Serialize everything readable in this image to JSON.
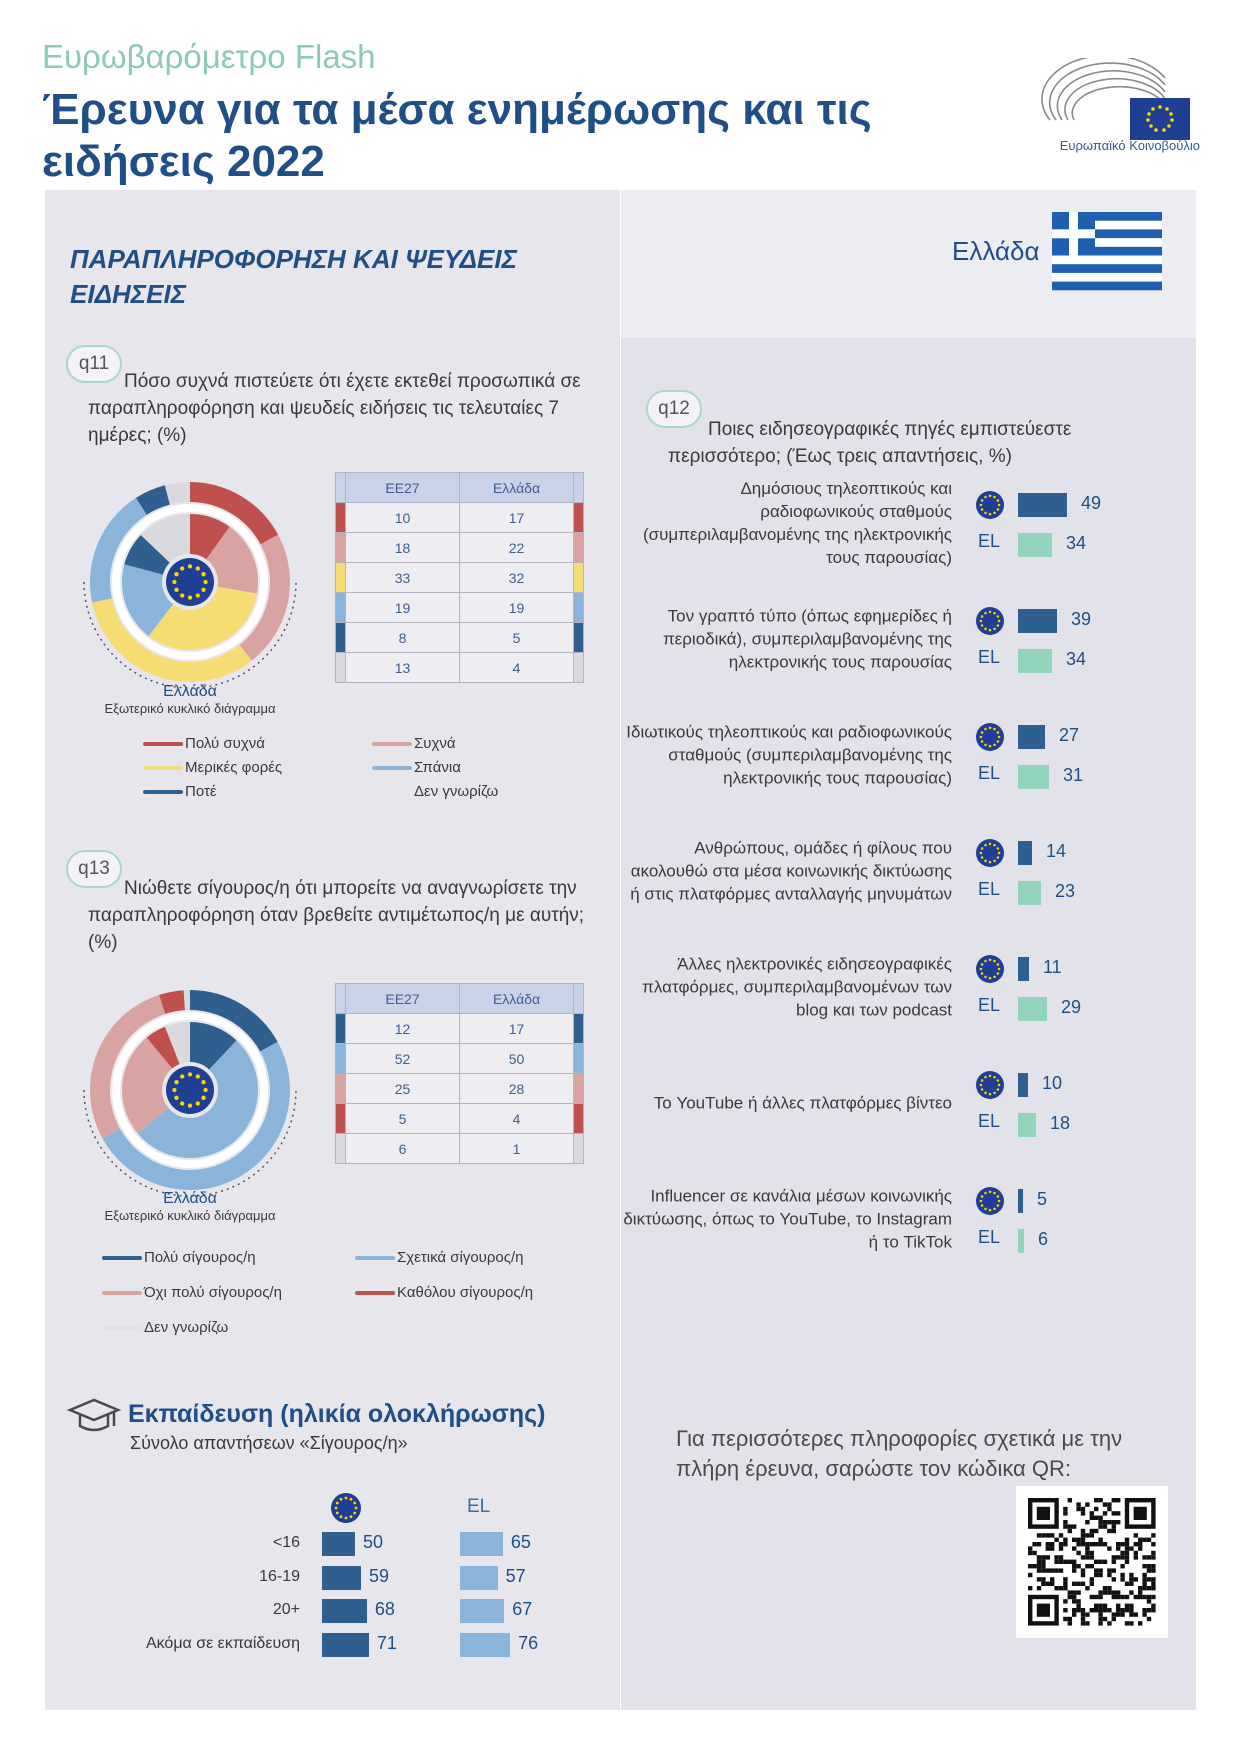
{
  "header": {
    "kicker": "Ευρωβαρόμετρο Flash",
    "title": "Έρευνα για τα μέσα ενημέρωσης και τις ειδήσεις 2022",
    "logo_text": "Ευρωπαϊκό Κοινοβούλιο"
  },
  "section_title": "ΠΑΡΑΠΛΗΡΟΦΟΡΗΣΗ ΚΑΙ ΨΕΥΔΕΙΣ ΕΙΔΗΣΕΙΣ",
  "country": "Ελλάδα",
  "colors": {
    "red": "#c0504d",
    "pink": "#d9a3a1",
    "yellow": "#f5dc73",
    "lightblue": "#8ab4d9",
    "darkblue": "#2f5f8f",
    "grey": "#d9d9de",
    "eu_blue": "#1f3f94",
    "eu_star": "#ffd500",
    "bar_eu": "#2f5f8f",
    "bar_el": "#92d3bd",
    "edu_el": "#8ab4d9"
  },
  "q11": {
    "tag": "q11",
    "text": "Πόσο συχνά πιστεύετε ότι έχετε εκτεθεί προσωπικά σε παραπληροφόρηση και ψευδείς ειδήσεις τις τελευταίες 7 ημέρες; (%)",
    "caption1": "Ελλάδα",
    "caption2": "Εξωτερικό κυκλικό διάγραμμα",
    "table_headers": [
      "ΕΕ27",
      "Ελλάδα"
    ],
    "legend": [
      "Πολύ συχνά",
      "Συχνά",
      "Μερικές φορές",
      "Σπάνια",
      "Ποτέ",
      "Δεν γνωρίζω"
    ]
  },
  "q13": {
    "tag": "q13",
    "text": "Νιώθετε σίγουρος/η ότι μπορείτε να αναγνωρίσετε την παραπληροφόρηση όταν βρεθείτε αντιμέτωπος/η με αυτήν; (%)",
    "caption1": "Ελλάδα",
    "caption2": "Εξωτερικό κυκλικό διάγραμμα",
    "table_headers": [
      "ΕΕ27",
      "Ελλάδα"
    ],
    "legend": [
      "Πολύ σίγουρος/η",
      "Σχετικά σίγουρος/η",
      "Όχι πολύ σίγουρος/η",
      "Καθόλου σίγουρος/η",
      "Δεν γνωρίζω"
    ]
  },
  "q12": {
    "tag": "q12",
    "text": "Ποιες ειδησεογραφικές πηγές εμπιστεύεστε περισσότερο; (Έως τρεις απαντήσεις, %)",
    "el_label": "EL"
  },
  "education": {
    "title": "Εκπαίδευση (ηλικία ολοκλήρωσης)",
    "subtitle": "Σύνολο απαντήσεων «Σίγουρος/η»",
    "el_label": "EL"
  },
  "more_info": "Για περισσότερες πληροφορίες σχετικά με την πλήρη έρευνα, σαρώστε τον κώδικα QR:",
  "chart_data": [
    {
      "type": "pie",
      "id": "q11",
      "categories": [
        "Πολύ συχνά",
        "Συχνά",
        "Μερικές φορές",
        "Σπάνια",
        "Ποτέ",
        "Δεν γνωρίζω"
      ],
      "series": [
        {
          "name": "ΕΕ27",
          "values": [
            10,
            18,
            33,
            19,
            8,
            13
          ]
        },
        {
          "name": "Ελλάδα",
          "values": [
            17,
            22,
            32,
            19,
            5,
            4
          ]
        }
      ],
      "colors": [
        "#c0504d",
        "#d9a3a1",
        "#f5dc73",
        "#8ab4d9",
        "#2f5f8f",
        "#d9d9de"
      ]
    },
    {
      "type": "pie",
      "id": "q13",
      "categories": [
        "Πολύ σίγουρος/η",
        "Σχετικά σίγουρος/η",
        "Όχι πολύ σίγουρος/η",
        "Καθόλου σίγουρος/η",
        "Δεν γνωρίζω"
      ],
      "series": [
        {
          "name": "ΕΕ27",
          "values": [
            12,
            52,
            25,
            5,
            6
          ]
        },
        {
          "name": "Ελλάδα",
          "values": [
            17,
            50,
            28,
            4,
            1
          ]
        }
      ],
      "colors": [
        "#2f5f8f",
        "#8ab4d9",
        "#d9a3a1",
        "#c0504d",
        "#d9d9de"
      ]
    },
    {
      "type": "bar",
      "id": "q12",
      "categories": [
        "Δημόσιους τηλεοπτικούς και ραδιοφωνικούς σταθμούς (συμπεριλαμβανομένης της ηλεκτρονικής τους παρουσίας)",
        "Τον γραπτό τύπο (όπως εφημερίδες ή περιοδικά), συμπεριλαμβανομένης της ηλεκτρονικής τους παρουσίας",
        "Ιδιωτικούς τηλεοπτικούς και ραδιοφωνικούς σταθμούς (συμπεριλαμβανομένης της ηλεκτρονικής τους παρουσίας)",
        "Ανθρώπους, ομάδες ή φίλους που ακολουθώ στα μέσα κοινωνικής δικτύωσης ή στις πλατφόρμες ανταλλαγής μηνυμάτων",
        "Άλλες ηλεκτρονικές ειδησεογραφικές πλατφόρμες, συμπεριλαμβανομένων των blog και των podcast",
        "Το YouTube ή άλλες πλατφόρμες βίντεο",
        "Influencer σε κανάλια μέσων κοινωνικής δικτύωσης, όπως το YouTube, το Instagram ή το TikTok"
      ],
      "series": [
        {
          "name": "EU",
          "values": [
            49,
            39,
            27,
            14,
            11,
            10,
            5
          ]
        },
        {
          "name": "EL",
          "values": [
            34,
            34,
            31,
            23,
            29,
            18,
            6
          ]
        }
      ]
    },
    {
      "type": "bar",
      "id": "education",
      "categories": [
        "<16",
        "16-19",
        "20+",
        "Ακόμα σε εκπαίδευση"
      ],
      "series": [
        {
          "name": "EU",
          "values": [
            50,
            59,
            68,
            71
          ]
        },
        {
          "name": "EL",
          "values": [
            65,
            57,
            67,
            76
          ]
        }
      ]
    }
  ]
}
